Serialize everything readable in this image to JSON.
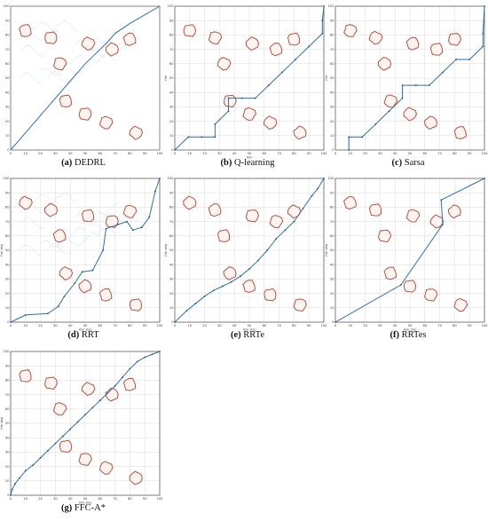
{
  "figure": {
    "panels": [
      {
        "id": "a",
        "label": "(a)",
        "title": "DEDRL",
        "xlabel": "",
        "ylabel": ""
      },
      {
        "id": "b",
        "label": "(b)",
        "title": "Q-learning",
        "xlabel": "X/m",
        "ylabel": "Y/m"
      },
      {
        "id": "c",
        "label": "(c)",
        "title": "Sarsa",
        "xlabel": "",
        "ylabel": "Y/m"
      },
      {
        "id": "d",
        "label": "(d)",
        "title": "RRT",
        "xlabel": "X/m ship",
        "ylabel": "Y/m ship"
      },
      {
        "id": "e",
        "label": "(e)",
        "title": "RRTe",
        "xlabel": "X/m ship",
        "ylabel": "Y/m ship"
      },
      {
        "id": "f",
        "label": "(f)",
        "title": "RRTes",
        "xlabel": "X/m ship",
        "ylabel": "Y/m ship"
      },
      {
        "id": "g",
        "label": "(g)",
        "title": "FFC-A*",
        "xlabel": "X/m ship",
        "ylabel": "Y/m ship"
      }
    ]
  },
  "chart_data": [
    {
      "type": "line",
      "title": "DEDRL",
      "xlim": [
        0,
        100
      ],
      "ylim": [
        0,
        100
      ],
      "xticks": [
        0,
        10,
        20,
        30,
        40,
        50,
        60,
        70,
        80,
        90,
        100
      ],
      "yticks": [
        0,
        10,
        20,
        30,
        40,
        50,
        60,
        70,
        80,
        90,
        100
      ],
      "grid": false,
      "obstacles": [
        [
          10,
          83
        ],
        [
          27,
          78
        ],
        [
          33,
          60
        ],
        [
          52,
          74
        ],
        [
          68,
          70
        ],
        [
          80,
          77
        ],
        [
          37,
          34
        ],
        [
          50,
          25
        ],
        [
          64,
          19
        ],
        [
          84,
          12
        ]
      ],
      "series": [
        {
          "points": [
            [
              0,
              0
            ],
            [
              5,
              6
            ],
            [
              10,
              12
            ],
            [
              15,
              18
            ],
            [
              20,
              24
            ],
            [
              25,
              30
            ],
            [
              30,
              36
            ],
            [
              35,
              42
            ],
            [
              40,
              48
            ],
            [
              45,
              54
            ],
            [
              50,
              60
            ],
            [
              55,
              65
            ],
            [
              60,
              70
            ],
            [
              65,
              75
            ],
            [
              70,
              81
            ],
            [
              80,
              88
            ],
            [
              90,
              94
            ],
            [
              100,
              100
            ]
          ],
          "markers": false
        }
      ],
      "noise": true
    },
    {
      "type": "line",
      "title": "Q-learning",
      "xlim": [
        0,
        100
      ],
      "ylim": [
        0,
        100
      ],
      "xticks": [
        0,
        10,
        20,
        30,
        40,
        50,
        60,
        70,
        80,
        90,
        100
      ],
      "yticks": [
        0,
        10,
        20,
        30,
        40,
        50,
        60,
        70,
        80,
        90,
        100
      ],
      "grid": true,
      "obstacles": [
        [
          10,
          83
        ],
        [
          27,
          78
        ],
        [
          33,
          60
        ],
        [
          52,
          74
        ],
        [
          68,
          70
        ],
        [
          80,
          77
        ],
        [
          37,
          34
        ],
        [
          50,
          25
        ],
        [
          64,
          19
        ],
        [
          84,
          12
        ]
      ],
      "series": [
        {
          "points": [
            [
              0,
              0
            ],
            [
              9,
              9
            ],
            [
              18,
              9
            ],
            [
              27,
              9
            ],
            [
              27,
              18
            ],
            [
              36,
              27
            ],
            [
              36,
              36
            ],
            [
              45,
              36
            ],
            [
              54,
              36
            ],
            [
              63,
              45
            ],
            [
              72,
              54
            ],
            [
              81,
              63
            ],
            [
              90,
              72
            ],
            [
              99,
              81
            ],
            [
              99,
              90
            ],
            [
              100,
              100
            ]
          ],
          "markers": true
        }
      ]
    },
    {
      "type": "line",
      "title": "Sarsa",
      "xlim": [
        0,
        100
      ],
      "ylim": [
        0,
        100
      ],
      "xticks": [
        0,
        10,
        20,
        30,
        40,
        50,
        60,
        70,
        80,
        90,
        100
      ],
      "yticks": [
        0,
        10,
        20,
        30,
        40,
        50,
        60,
        70,
        80,
        90,
        100
      ],
      "grid": true,
      "obstacles": [
        [
          10,
          83
        ],
        [
          27,
          78
        ],
        [
          33,
          60
        ],
        [
          52,
          74
        ],
        [
          68,
          70
        ],
        [
          80,
          77
        ],
        [
          37,
          34
        ],
        [
          50,
          25
        ],
        [
          64,
          19
        ],
        [
          84,
          12
        ]
      ],
      "series": [
        {
          "points": [
            [
              9,
              0
            ],
            [
              9,
              9
            ],
            [
              18,
              9
            ],
            [
              27,
              18
            ],
            [
              36,
              27
            ],
            [
              45,
              36
            ],
            [
              45,
              45
            ],
            [
              54,
              45
            ],
            [
              63,
              45
            ],
            [
              72,
              54
            ],
            [
              81,
              63
            ],
            [
              90,
              63
            ],
            [
              99,
              72
            ],
            [
              99,
              81
            ],
            [
              100,
              100
            ]
          ],
          "markers": true
        }
      ]
    },
    {
      "type": "line",
      "title": "RRT",
      "xlim": [
        0,
        100
      ],
      "ylim": [
        0,
        100
      ],
      "xticks": [
        0,
        10,
        20,
        30,
        40,
        50,
        60,
        70,
        80,
        90,
        100
      ],
      "yticks": [
        0,
        10,
        20,
        30,
        40,
        50,
        60,
        70,
        80,
        90,
        100
      ],
      "grid": true,
      "obstacles": [
        [
          10,
          83
        ],
        [
          27,
          78
        ],
        [
          33,
          60
        ],
        [
          52,
          74
        ],
        [
          68,
          70
        ],
        [
          80,
          77
        ],
        [
          37,
          34
        ],
        [
          50,
          25
        ],
        [
          64,
          19
        ],
        [
          84,
          12
        ]
      ],
      "series": [
        {
          "points": [
            [
              0,
              0
            ],
            [
              10,
              5
            ],
            [
              25,
              6
            ],
            [
              32,
              11
            ],
            [
              36,
              18
            ],
            [
              43,
              27
            ],
            [
              48,
              35
            ],
            [
              55,
              36
            ],
            [
              62,
              50
            ],
            [
              64,
              65
            ],
            [
              72,
              68
            ],
            [
              78,
              70
            ],
            [
              82,
              64
            ],
            [
              88,
              66
            ],
            [
              93,
              73
            ],
            [
              97,
              91
            ],
            [
              100,
              100
            ]
          ],
          "markers": true
        }
      ],
      "noise": true
    },
    {
      "type": "line",
      "title": "RRTe",
      "xlim": [
        0,
        100
      ],
      "ylim": [
        0,
        100
      ],
      "xticks": [
        0,
        10,
        20,
        30,
        40,
        50,
        60,
        70,
        80,
        90,
        100
      ],
      "yticks": [
        0,
        10,
        20,
        30,
        40,
        50,
        60,
        70,
        80,
        90,
        100
      ],
      "grid": true,
      "obstacles": [
        [
          10,
          83
        ],
        [
          27,
          78
        ],
        [
          33,
          60
        ],
        [
          52,
          74
        ],
        [
          68,
          70
        ],
        [
          80,
          77
        ],
        [
          37,
          34
        ],
        [
          50,
          25
        ],
        [
          64,
          19
        ],
        [
          84,
          12
        ]
      ],
      "series": [
        {
          "points": [
            [
              0,
              0
            ],
            [
              8,
              8
            ],
            [
              14,
              13
            ],
            [
              20,
              18
            ],
            [
              26,
              22
            ],
            [
              32,
              25
            ],
            [
              38,
              28
            ],
            [
              44,
              32
            ],
            [
              50,
              37
            ],
            [
              56,
              43
            ],
            [
              62,
              50
            ],
            [
              68,
              58
            ],
            [
              74,
              64
            ],
            [
              80,
              70
            ],
            [
              86,
              79
            ],
            [
              92,
              88
            ],
            [
              96,
              93
            ],
            [
              100,
              100
            ]
          ],
          "markers": true
        }
      ]
    },
    {
      "type": "line",
      "title": "RRTes",
      "xlim": [
        0,
        100
      ],
      "ylim": [
        0,
        100
      ],
      "xticks": [
        0,
        10,
        20,
        30,
        40,
        50,
        60,
        70,
        80,
        90,
        100
      ],
      "yticks": [
        0,
        10,
        20,
        30,
        40,
        50,
        60,
        70,
        80,
        90,
        100
      ],
      "grid": true,
      "obstacles": [
        [
          10,
          83
        ],
        [
          27,
          78
        ],
        [
          33,
          60
        ],
        [
          52,
          74
        ],
        [
          68,
          70
        ],
        [
          80,
          77
        ],
        [
          37,
          34
        ],
        [
          50,
          25
        ],
        [
          64,
          19
        ],
        [
          84,
          12
        ]
      ],
      "series": [
        {
          "points": [
            [
              0,
              0
            ],
            [
              44,
              26
            ],
            [
              72,
              68
            ],
            [
              71,
              85
            ],
            [
              100,
              100
            ]
          ],
          "markers": true
        }
      ]
    },
    {
      "type": "line",
      "title": "FFC-A*",
      "xlim": [
        0,
        100
      ],
      "ylim": [
        0,
        100
      ],
      "xticks": [
        0,
        10,
        20,
        30,
        40,
        50,
        60,
        70,
        80,
        90,
        100
      ],
      "yticks": [
        0,
        10,
        20,
        30,
        40,
        50,
        60,
        70,
        80,
        90,
        100
      ],
      "grid": true,
      "obstacles": [
        [
          10,
          83
        ],
        [
          27,
          78
        ],
        [
          33,
          60
        ],
        [
          52,
          74
        ],
        [
          68,
          70
        ],
        [
          80,
          77
        ],
        [
          37,
          34
        ],
        [
          50,
          25
        ],
        [
          64,
          19
        ],
        [
          84,
          12
        ]
      ],
      "series": [
        {
          "points": [
            [
              0,
              0
            ],
            [
              1,
              4
            ],
            [
              3,
              8
            ],
            [
              6,
              12
            ],
            [
              10,
              17
            ],
            [
              15,
              21
            ],
            [
              20,
              26
            ],
            [
              25,
              31
            ],
            [
              30,
              36
            ],
            [
              35,
              41
            ],
            [
              40,
              46
            ],
            [
              45,
              51
            ],
            [
              50,
              56
            ],
            [
              55,
              61
            ],
            [
              60,
              66
            ],
            [
              65,
              71
            ],
            [
              70,
              76
            ],
            [
              75,
              82
            ],
            [
              80,
              88
            ],
            [
              85,
              93
            ],
            [
              90,
              96
            ],
            [
              95,
              98
            ],
            [
              100,
              100
            ]
          ],
          "markers": true
        }
      ]
    }
  ]
}
